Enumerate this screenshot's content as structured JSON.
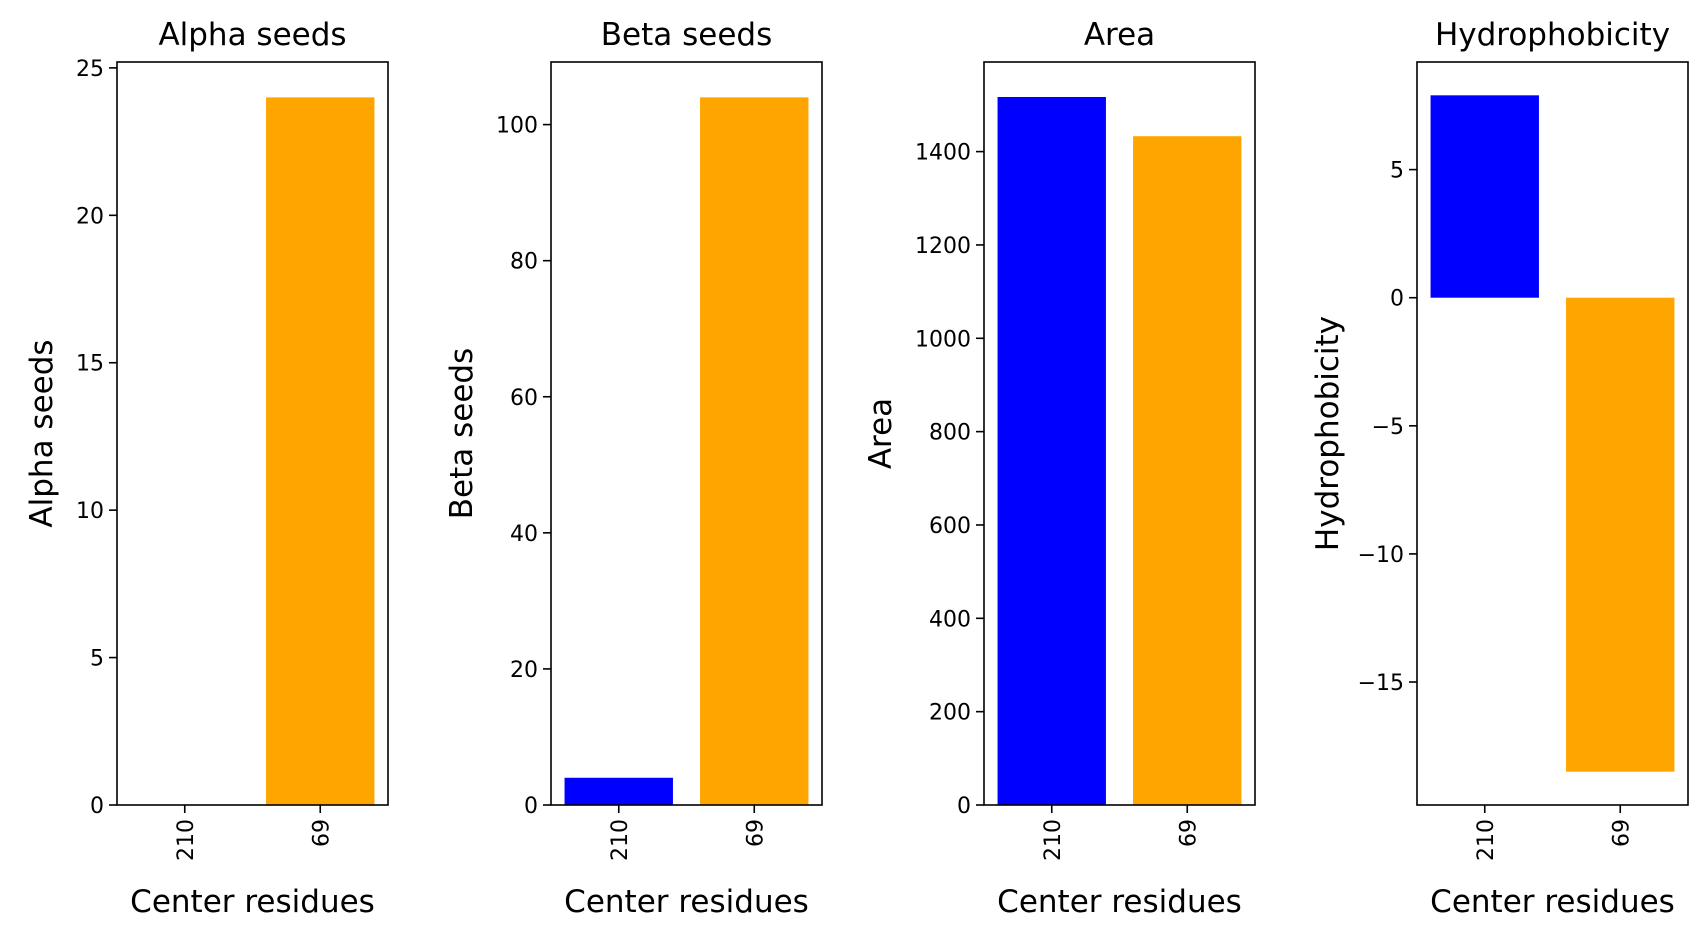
{
  "chart_data": [
    {
      "type": "bar",
      "title": "Alpha seeds",
      "xlabel": "Center residues",
      "ylabel": "Alpha seeds",
      "categories": [
        "210",
        "69"
      ],
      "values": [
        0,
        24
      ],
      "colors": [
        "#0000ff",
        "#ffa500"
      ],
      "ylim": [
        0,
        25.2
      ],
      "yticks": [
        0,
        5,
        10,
        15,
        20,
        25
      ],
      "ytick_labels": [
        "0",
        "5",
        "10",
        "15",
        "20",
        "25"
      ]
    },
    {
      "type": "bar",
      "title": "Beta seeds",
      "xlabel": "Center residues",
      "ylabel": "Beta seeds",
      "categories": [
        "210",
        "69"
      ],
      "values": [
        4,
        104
      ],
      "colors": [
        "#0000ff",
        "#ffa500"
      ],
      "ylim": [
        0,
        109.2
      ],
      "yticks": [
        0,
        20,
        40,
        60,
        80,
        100
      ],
      "ytick_labels": [
        "0",
        "20",
        "40",
        "60",
        "80",
        "100"
      ]
    },
    {
      "type": "bar",
      "title": "Area",
      "xlabel": "Center residues",
      "ylabel": "Area",
      "categories": [
        "210",
        "69"
      ],
      "values": [
        1517,
        1433
      ],
      "colors": [
        "#0000ff",
        "#ffa500"
      ],
      "ylim": [
        0,
        1592
      ],
      "yticks": [
        0,
        200,
        400,
        600,
        800,
        1000,
        1200,
        1400
      ],
      "ytick_labels": [
        "0",
        "200",
        "400",
        "600",
        "800",
        "1000",
        "1200",
        "1400"
      ]
    },
    {
      "type": "bar",
      "title": "Hydrophobicity",
      "xlabel": "Center residues",
      "ylabel": "Hydrophobicity",
      "categories": [
        "210",
        "69"
      ],
      "values": [
        7.9,
        -18.5
      ],
      "colors": [
        "#0000ff",
        "#ffa500"
      ],
      "ylim": [
        -19.8,
        9.2
      ],
      "yticks": [
        -15,
        -10,
        -5,
        0,
        5
      ],
      "ytick_labels": [
        "−15",
        "−10",
        "−5",
        "0",
        "5"
      ]
    }
  ]
}
